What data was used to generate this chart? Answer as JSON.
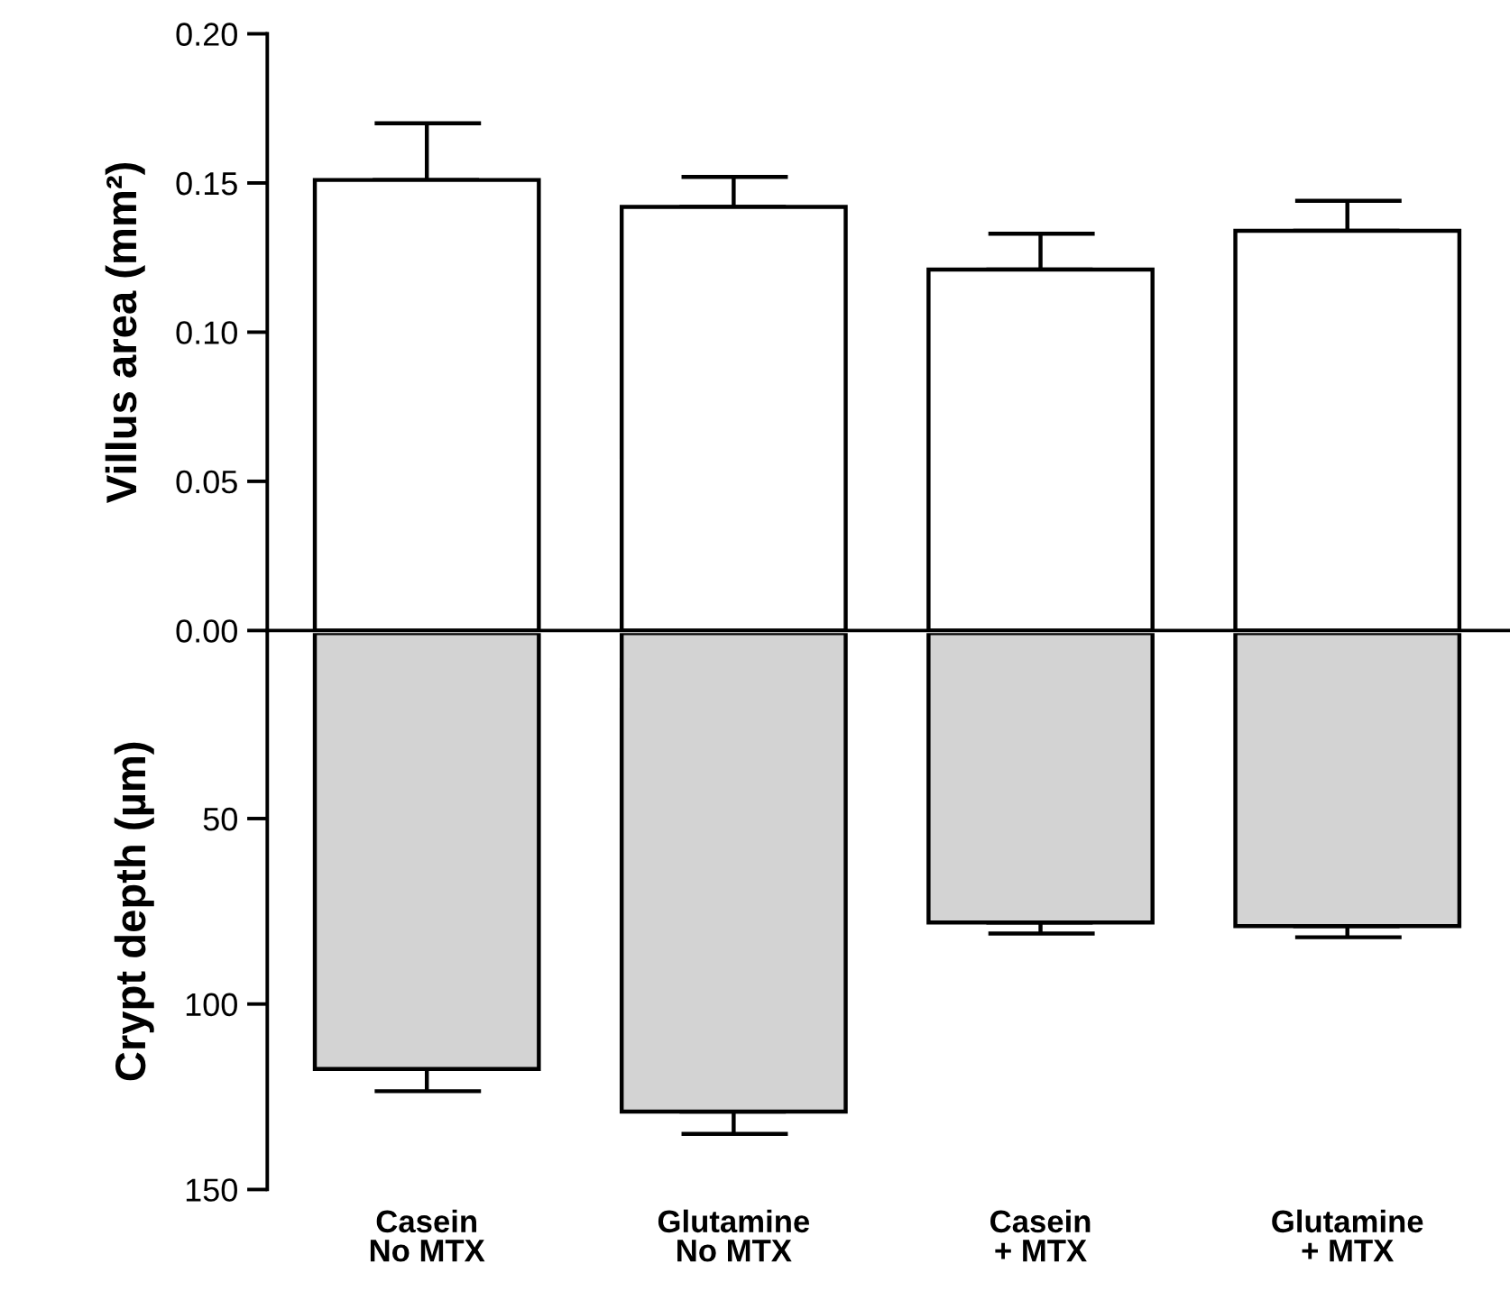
{
  "chart_data": [
    {
      "type": "bar",
      "ylabel": "Villus area (mm²)",
      "values": [
        0.151,
        0.142,
        0.121,
        0.134
      ],
      "color": "#ffffff",
      "errors": [
        [
          0.151,
          0.17
        ],
        [
          0.142,
          0.152
        ],
        [
          0.121,
          0.133
        ],
        [
          0.134,
          0.144
        ]
      ],
      "ylim": [
        0,
        0.2
      ],
      "yticks": [
        {
          "value": 0,
          "label": "0.00"
        },
        {
          "value": 0.05,
          "label": "0.05"
        },
        {
          "value": 0.1,
          "label": "0.10"
        },
        {
          "value": 0.15,
          "label": "0.15"
        },
        {
          "value": 0.2,
          "label": "0.20"
        }
      ],
      "tick_labels": "y",
      "grid": false,
      "legend": false
    },
    {
      "type": "bar",
      "ylabel": "Crypt depth (µm)",
      "categories": [
        "Casein\nNo MTX",
        "Glutamine\nNo MTX",
        "Casein\n+ MTX",
        "Glutamine\n+ MTX"
      ],
      "values": [
        117.5,
        129,
        78,
        79
      ],
      "color": "#d3d3d3",
      "errors": [
        [
          117.5,
          123.5
        ],
        [
          129,
          135
        ],
        [
          78,
          81
        ],
        [
          79,
          82
        ]
      ],
      "ylim": [
        150,
        0
      ],
      "yticks": [
        50,
        100,
        150
      ],
      "grid": false,
      "legend": false
    }
  ]
}
